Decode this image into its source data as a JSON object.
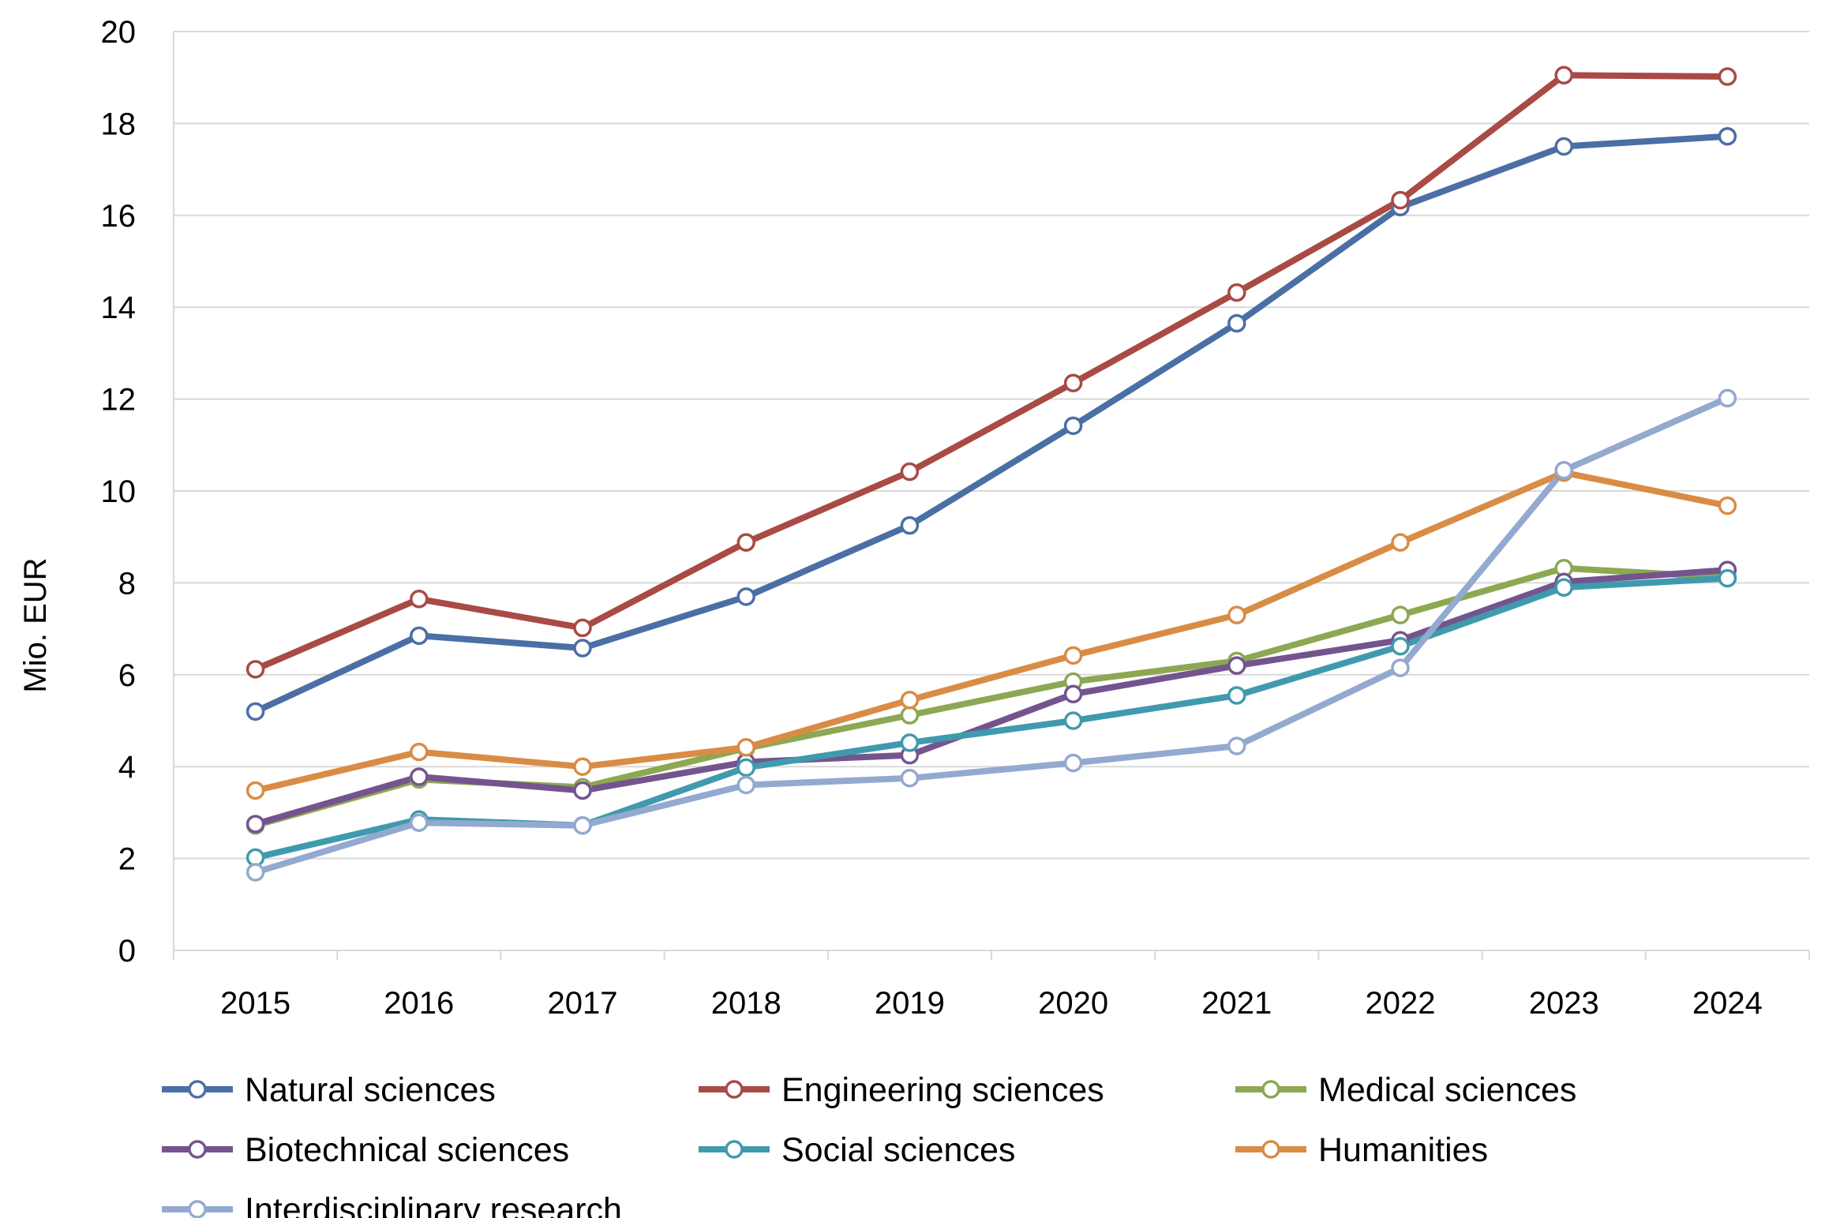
{
  "chart_data": {
    "type": "line",
    "title": "",
    "xlabel": "",
    "ylabel": "Mio. EUR",
    "ylim": [
      0,
      20
    ],
    "yticks": [
      "0",
      "2",
      "4",
      "6",
      "8",
      "10",
      "12",
      "14",
      "16",
      "18",
      "20"
    ],
    "x": [
      "2015",
      "2016",
      "2017",
      "2018",
      "2019",
      "2020",
      "2021",
      "2022",
      "2023",
      "2024"
    ],
    "grid": "horizontal",
    "legend_position": "bottom",
    "series": [
      {
        "name": "Natural sciences",
        "color": "#4A6FA5",
        "values": [
          5.2,
          6.85,
          6.58,
          7.7,
          9.25,
          11.42,
          13.65,
          16.18,
          17.5,
          17.72
        ]
      },
      {
        "name": "Engineering sciences",
        "color": "#A94A45",
        "values": [
          6.12,
          7.65,
          7.02,
          8.88,
          10.42,
          12.35,
          14.32,
          16.33,
          19.05,
          19.02
        ]
      },
      {
        "name": "Medical sciences",
        "color": "#8CA853",
        "values": [
          2.72,
          3.72,
          3.55,
          4.4,
          5.12,
          5.85,
          6.3,
          7.3,
          8.32,
          8.12
        ]
      },
      {
        "name": "Biotechnical sciences",
        "color": "#74548F",
        "values": [
          2.75,
          3.78,
          3.48,
          4.1,
          4.25,
          5.58,
          6.2,
          6.75,
          8.02,
          8.28
        ]
      },
      {
        "name": "Social sciences",
        "color": "#3F9AAE",
        "values": [
          2.02,
          2.85,
          2.72,
          3.98,
          4.52,
          5.0,
          5.55,
          6.62,
          7.9,
          8.1
        ]
      },
      {
        "name": "Humanities",
        "color": "#D98C45",
        "values": [
          3.48,
          4.32,
          4.0,
          4.42,
          5.45,
          6.42,
          7.3,
          8.88,
          10.4,
          9.68
        ]
      },
      {
        "name": "Interdisciplinary research",
        "color": "#93A9CF",
        "values": [
          1.7,
          2.78,
          2.72,
          3.6,
          3.75,
          4.08,
          4.45,
          6.15,
          10.45,
          12.02
        ]
      }
    ]
  }
}
